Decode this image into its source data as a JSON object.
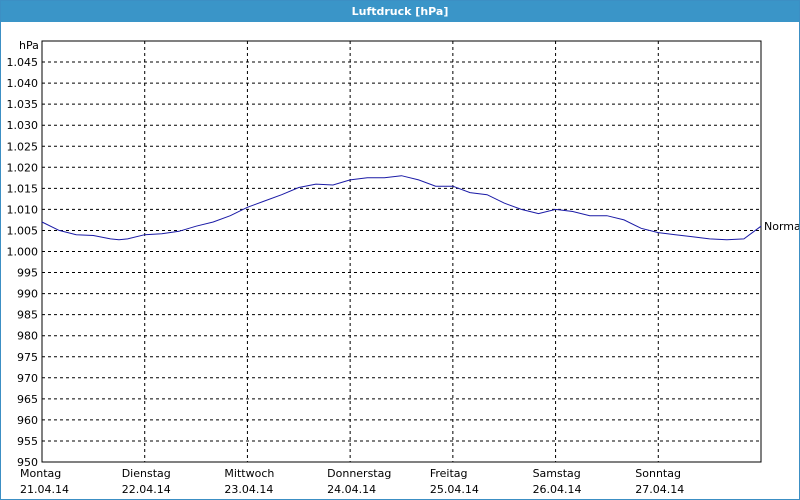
{
  "window": {
    "title": "Luftdruck [hPa]"
  },
  "chart_data": {
    "type": "line",
    "ylabel": "hPa",
    "ylim": [
      950,
      1050
    ],
    "yticks": [
      950,
      955,
      960,
      965,
      970,
      975,
      980,
      985,
      990,
      995,
      1000,
      1005,
      1010,
      1015,
      1020,
      1025,
      1030,
      1035,
      1040,
      1045
    ],
    "ytick_labels": [
      "950",
      "955",
      "960",
      "965",
      "970",
      "975",
      "980",
      "985",
      "990",
      "995",
      "1.000",
      "1.005",
      "1.010",
      "1.015",
      "1.020",
      "1.025",
      "1.030",
      "1.035",
      "1.040",
      "1.045"
    ],
    "xlim": [
      "2014-04-21",
      "2014-04-28"
    ],
    "day_labels": [
      {
        "day": "Montag",
        "date": "21.04.14"
      },
      {
        "day": "Dienstag",
        "date": "22.04.14"
      },
      {
        "day": "Mittwoch",
        "date": "23.04.14"
      },
      {
        "day": "Donnerstag",
        "date": "24.04.14"
      },
      {
        "day": "Freitag",
        "date": "25.04.14"
      },
      {
        "day": "Samstag",
        "date": "26.04.14"
      },
      {
        "day": "Sonntag",
        "date": "27.04.14"
      }
    ],
    "grid": true,
    "series": [
      {
        "name": "Normal",
        "color": "#1a1aa6",
        "x": [
          "2014-04-21 00:00",
          "2014-04-21 04:00",
          "2014-04-21 08:00",
          "2014-04-21 12:00",
          "2014-04-21 16:00",
          "2014-04-21 18:00",
          "2014-04-21 20:00",
          "2014-04-22 00:00",
          "2014-04-22 04:00",
          "2014-04-22 08:00",
          "2014-04-22 12:00",
          "2014-04-22 16:00",
          "2014-04-22 20:00",
          "2014-04-23 00:00",
          "2014-04-23 04:00",
          "2014-04-23 08:00",
          "2014-04-23 12:00",
          "2014-04-23 16:00",
          "2014-04-23 20:00",
          "2014-04-24 00:00",
          "2014-04-24 04:00",
          "2014-04-24 08:00",
          "2014-04-24 12:00",
          "2014-04-24 16:00",
          "2014-04-24 20:00",
          "2014-04-25 00:00",
          "2014-04-25 04:00",
          "2014-04-25 08:00",
          "2014-04-25 12:00",
          "2014-04-25 16:00",
          "2014-04-25 20:00",
          "2014-04-26 00:00",
          "2014-04-26 04:00",
          "2014-04-26 08:00",
          "2014-04-26 12:00",
          "2014-04-26 16:00",
          "2014-04-26 20:00",
          "2014-04-27 00:00",
          "2014-04-27 04:00",
          "2014-04-27 08:00",
          "2014-04-27 12:00",
          "2014-04-27 16:00",
          "2014-04-27 20:00",
          "2014-04-28 00:00"
        ],
        "values": [
          1007.0,
          1005.0,
          1004.0,
          1003.8,
          1003.0,
          1002.8,
          1003.0,
          1004.0,
          1004.2,
          1004.8,
          1006.0,
          1007.0,
          1008.5,
          1010.5,
          1012.0,
          1013.5,
          1015.2,
          1016.0,
          1015.8,
          1017.0,
          1017.5,
          1017.5,
          1018.0,
          1017.0,
          1015.5,
          1015.5,
          1014.0,
          1013.5,
          1011.5,
          1010.0,
          1009.0,
          1010.0,
          1009.5,
          1008.5,
          1008.5,
          1007.5,
          1005.5,
          1004.5,
          1004.0,
          1003.5,
          1003.0,
          1002.8,
          1003.0,
          1006.0
        ]
      }
    ]
  }
}
